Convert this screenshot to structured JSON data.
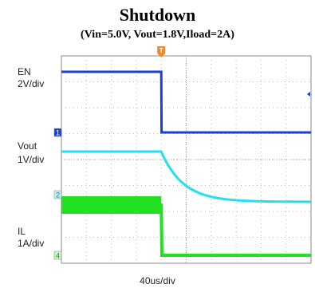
{
  "chart_data": {
    "type": "line",
    "title": "Shutdown",
    "subtitle": "(Vin=5.0V, Vout=1.8V,Iload=2A)",
    "xlabel": "40us/div",
    "xlim": [
      0,
      400
    ],
    "x_unit": "us",
    "grid": true,
    "trigger_time": 160,
    "series": [
      {
        "name": "EN",
        "scale": "2V/div",
        "channel": "1",
        "color": "#1a3fd6",
        "x": [
          0,
          160,
          160.5,
          400
        ],
        "y": [
          5.0,
          5.0,
          0.0,
          0.0
        ]
      },
      {
        "name": "Vout",
        "scale": "1V/div",
        "channel": "2",
        "color": "#22e0ee",
        "x": [
          0,
          160,
          170,
          180,
          190,
          200,
          220,
          240,
          260,
          280,
          300,
          340,
          400
        ],
        "y": [
          1.8,
          1.8,
          1.35,
          1.0,
          0.72,
          0.52,
          0.3,
          0.17,
          0.1,
          0.06,
          0.03,
          0.01,
          0.0
        ]
      },
      {
        "name": "IL",
        "scale": "1A/div",
        "channel": "4",
        "color": "#22e022",
        "x": [
          0,
          160,
          161,
          400
        ],
        "y": [
          2.0,
          2.0,
          0.0,
          0.0
        ]
      }
    ],
    "labels": {
      "en_name": "EN",
      "en_scale": "2V/div",
      "vout_name": "Vout",
      "vout_scale": "1V/div",
      "il_name": "IL",
      "il_scale": "1A/div",
      "trigger_marker": "T",
      "ch1": "1",
      "ch2": "2",
      "ch4": "4"
    }
  }
}
